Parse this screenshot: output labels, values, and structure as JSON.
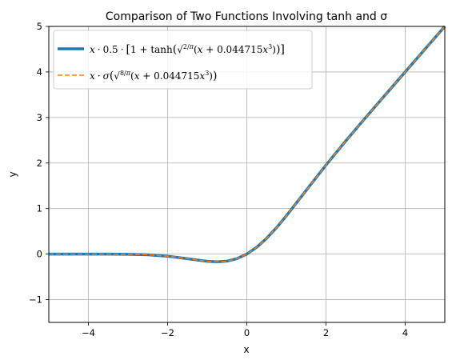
{
  "chart_data": {
    "type": "line",
    "title": "Comparison of Two Functions Involving tanh  and σ",
    "xlabel": "x",
    "ylabel": "y",
    "xlim": [
      -5,
      5
    ],
    "ylim": [
      -1.5,
      5
    ],
    "x_ticks": [
      -4,
      -2,
      0,
      2,
      4
    ],
    "x_tick_labels": [
      "−4",
      "−2",
      "0",
      "2",
      "4"
    ],
    "y_ticks": [
      -1,
      0,
      1,
      2,
      3,
      4,
      5
    ],
    "y_tick_labels": [
      "−1",
      "0",
      "1",
      "2",
      "3",
      "4",
      "5"
    ],
    "grid": true,
    "legend_position": "top-left",
    "x": [
      -5,
      -4.5,
      -4,
      -3.5,
      -3,
      -2.5,
      -2,
      -1.5,
      -1,
      -0.75,
      -0.5,
      -0.25,
      0,
      0.25,
      0.5,
      0.75,
      1,
      1.5,
      2,
      2.5,
      3,
      3.5,
      4,
      4.5,
      5
    ],
    "series": [
      {
        "name": "x · 0.5 · [1 + tanh(√(2/π)(x + 0.044715x³))]",
        "color": "#1f77b4",
        "style": "solid",
        "values": [
          0.0,
          0.0,
          -0.0001,
          -0.0008,
          -0.0036,
          -0.0146,
          -0.0454,
          -0.1005,
          -0.1588,
          -0.17,
          -0.1543,
          -0.1004,
          0.0,
          0.1496,
          0.3457,
          0.58,
          0.8412,
          1.3996,
          1.9546,
          2.4854,
          2.9964,
          3.4992,
          3.9999,
          4.5,
          5.0
        ]
      },
      {
        "name": "x · σ(√(8/π)(x + 0.044715x³))",
        "color": "#ff7f0e",
        "style": "dashed",
        "values": [
          0.0,
          0.0,
          -0.0001,
          -0.0008,
          -0.0036,
          -0.0146,
          -0.0454,
          -0.1005,
          -0.1588,
          -0.17,
          -0.1543,
          -0.1004,
          0.0,
          0.1496,
          0.3457,
          0.58,
          0.8412,
          1.3996,
          1.9546,
          2.4854,
          2.9964,
          3.4992,
          3.9999,
          4.5,
          5.0
        ]
      }
    ]
  }
}
